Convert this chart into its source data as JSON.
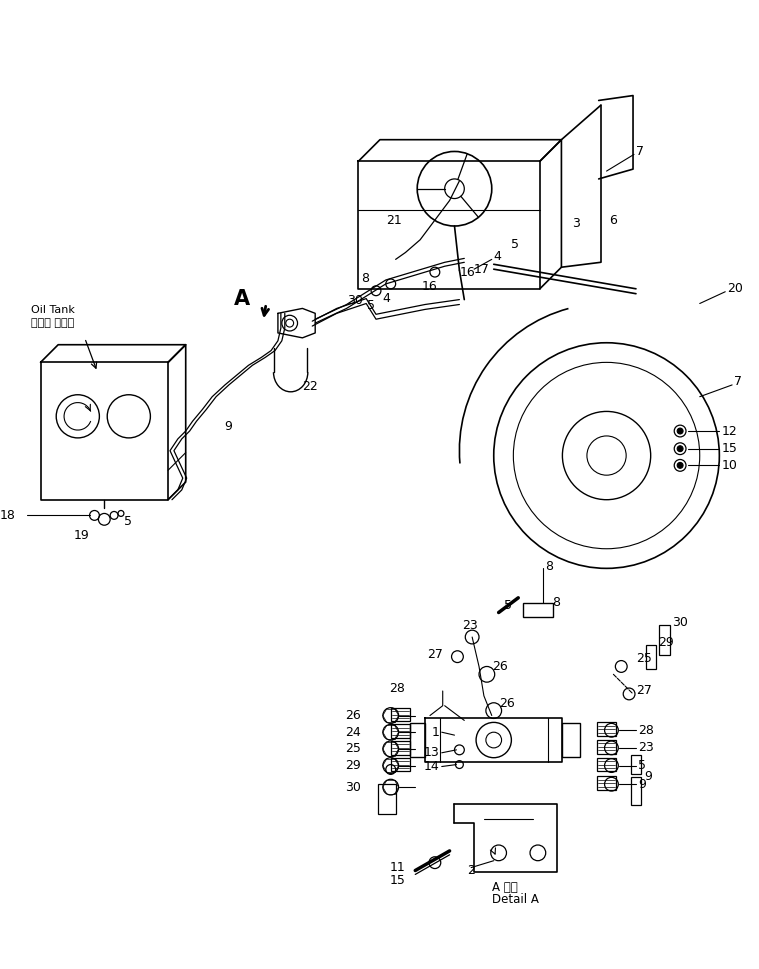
{
  "bg_color": "#ffffff",
  "line_color": "#000000",
  "fig_width": 7.59,
  "fig_height": 9.69,
  "dpi": 100,
  "oil_tank_label_jp": "オイル タンク",
  "oil_tank_label_en": "Oil Tank",
  "detail_a_jp": "A 詳細",
  "detail_a_en": "Detail A",
  "label_A": "A"
}
